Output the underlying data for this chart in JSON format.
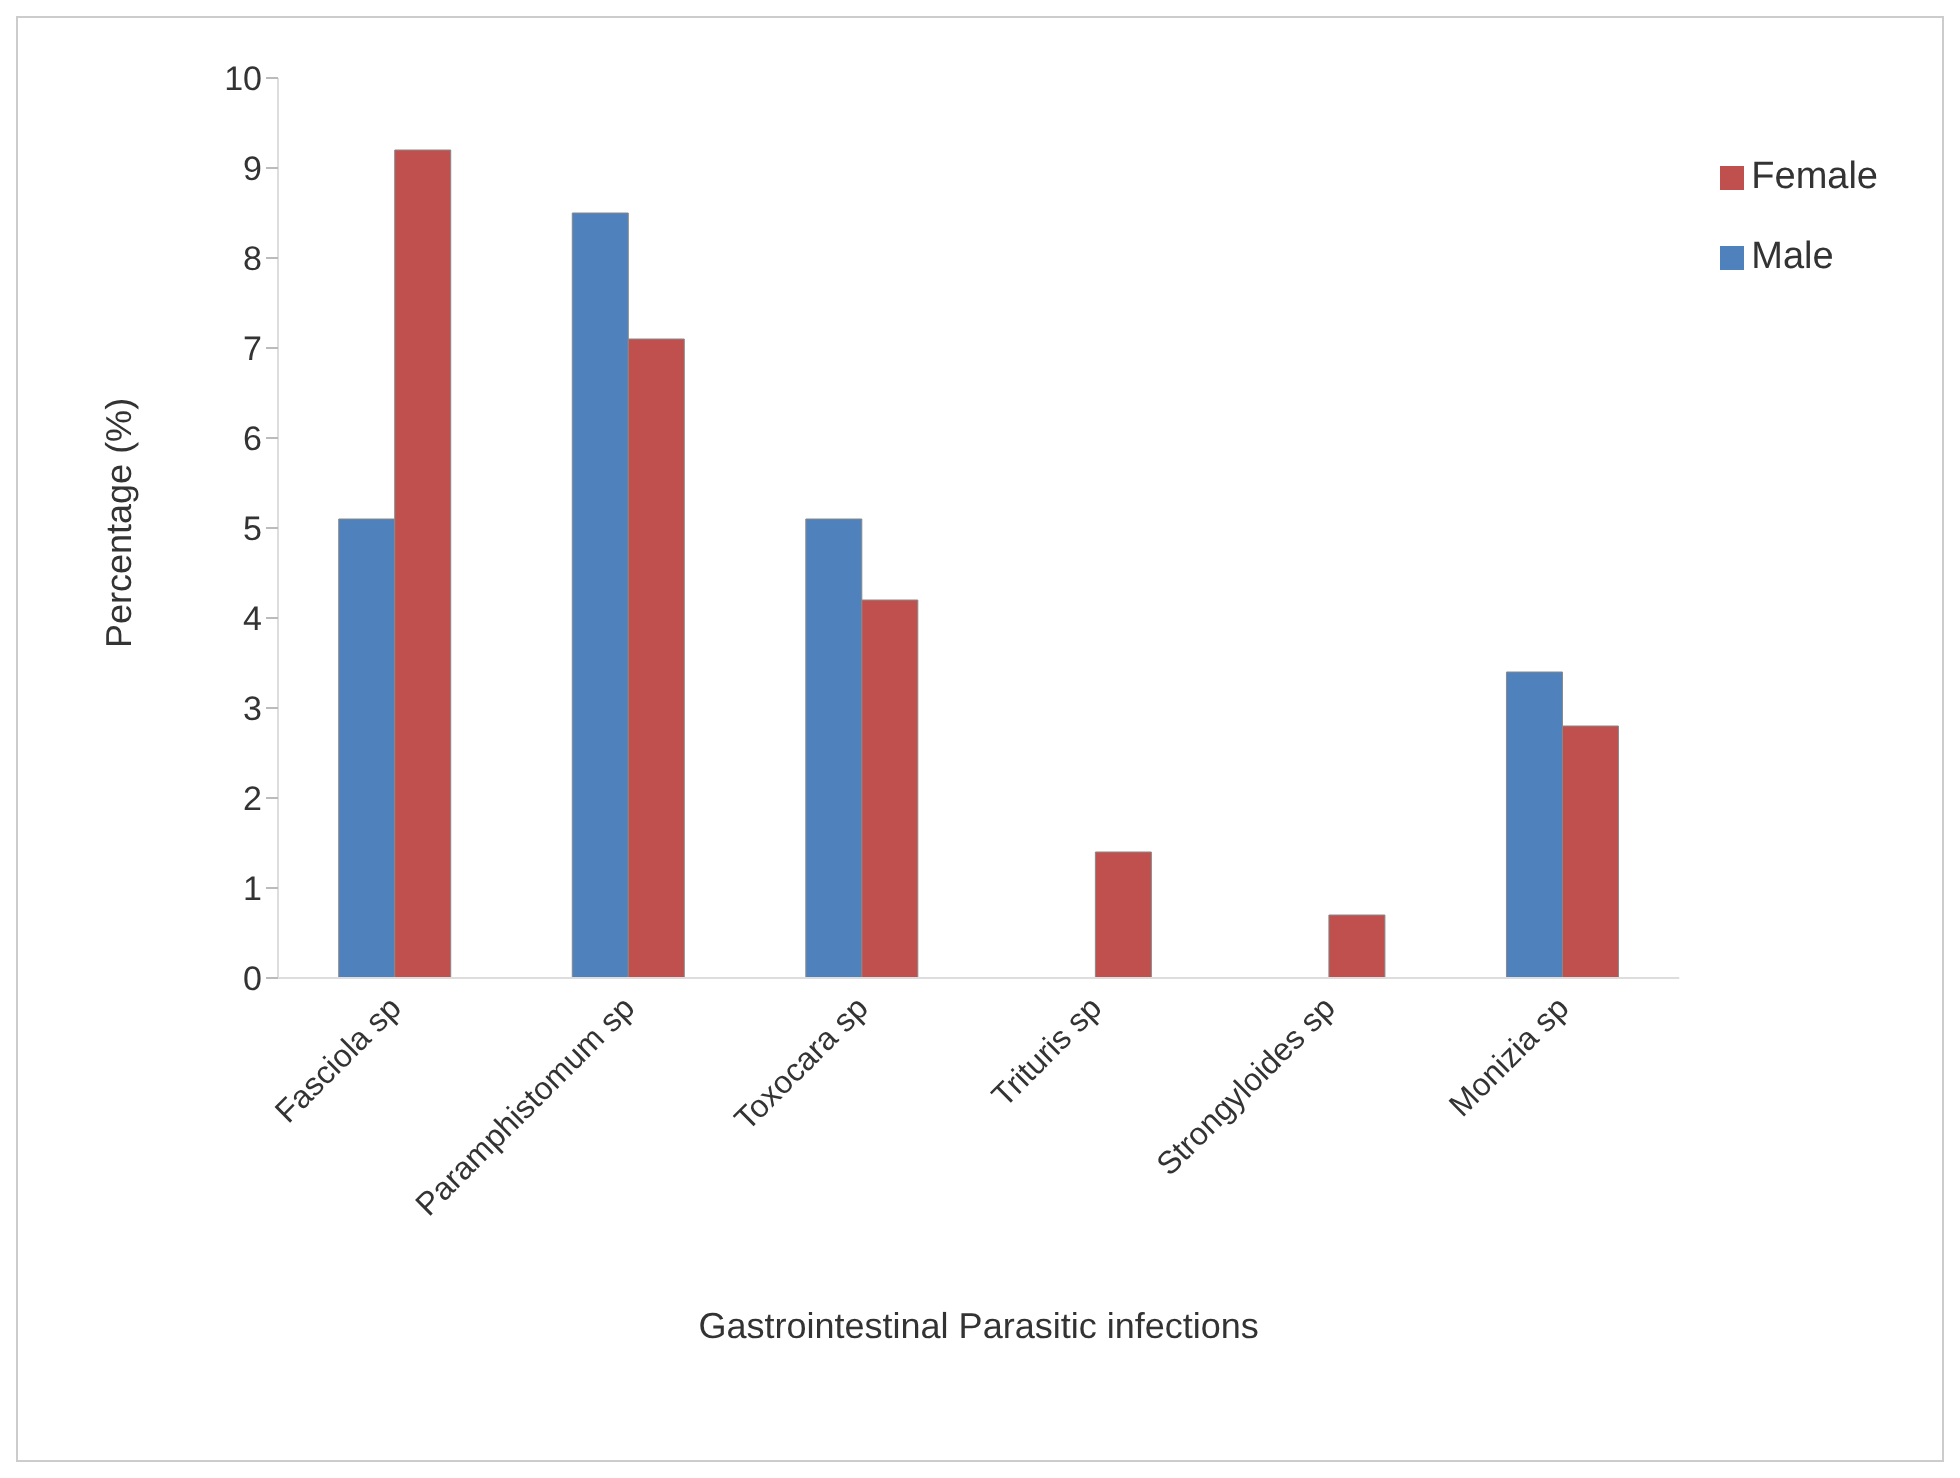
{
  "chart_data": {
    "type": "bar",
    "xlabel": "Gastrointestinal Parasitic infections",
    "ylabel": "Percentage (%)",
    "categories": [
      "Fasciola sp",
      "Paramphistomum sp",
      "Toxocara sp",
      "Trituris  sp",
      "Strongyloides sp",
      "Monizia sp"
    ],
    "series": [
      {
        "name": "Male",
        "color": "#4f81bd",
        "values": [
          5.1,
          8.5,
          5.1,
          0,
          0,
          3.4
        ]
      },
      {
        "name": "Female",
        "color": "#c0504d",
        "values": [
          9.2,
          7.1,
          4.2,
          1.4,
          0.7,
          2.8
        ]
      }
    ],
    "ylim": [
      0,
      10
    ],
    "yticks": [
      0,
      1,
      2,
      3,
      4,
      5,
      6,
      7,
      8,
      9,
      10
    ],
    "grid": false,
    "legend": "top right"
  }
}
